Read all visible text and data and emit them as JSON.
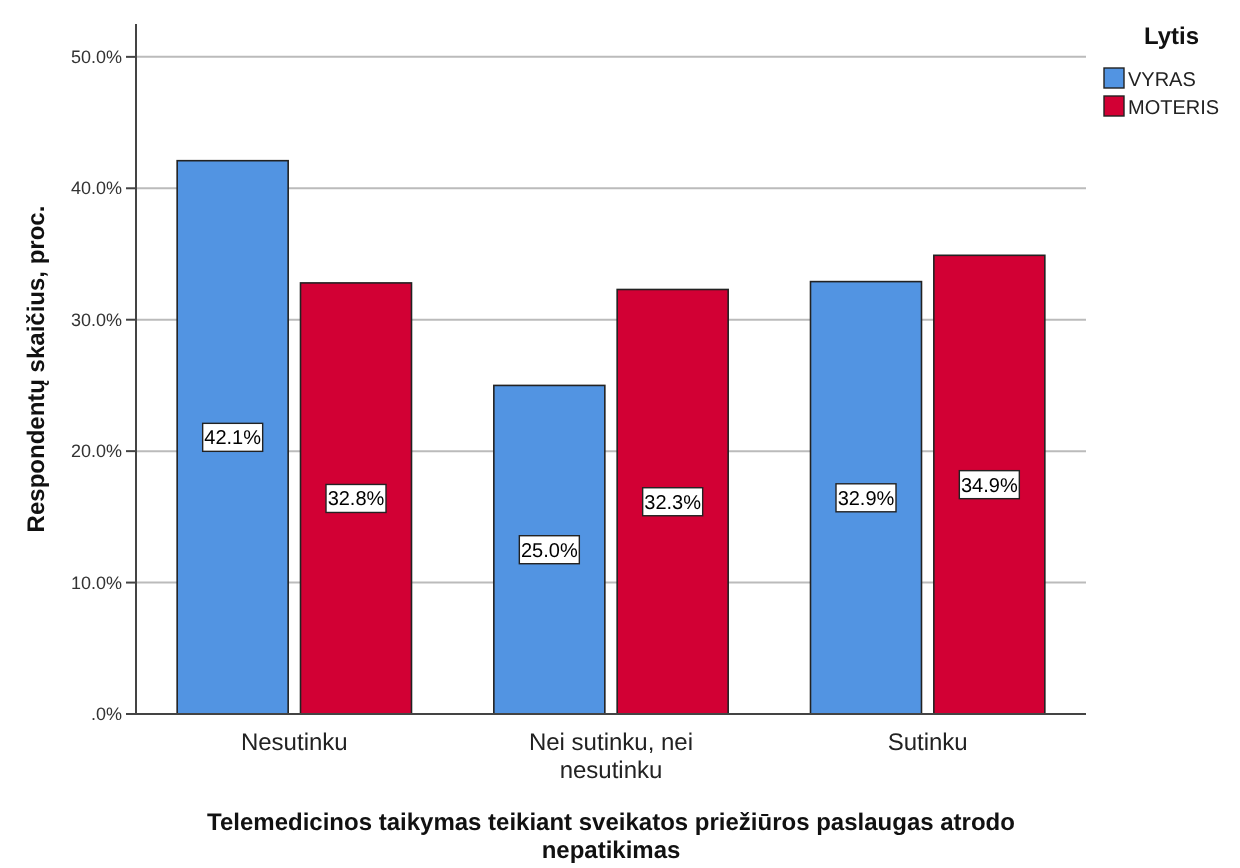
{
  "chart_data": {
    "type": "bar",
    "xlabel": "Telemedicinos taikymas teikiant sveikatos priežiūros paslaugas atrodo nepatikimas",
    "ylabel": "Respondentų skaičius, proc.",
    "legend_title": "Lytis",
    "legend": "top right",
    "grid": "y",
    "categories": [
      "Nesutinku",
      "Nei sutinku, nei nesutinku",
      "Sutinku"
    ],
    "series": [
      {
        "name": "VYRAS",
        "color": "#5294e2",
        "values": [
          42.1,
          25.0,
          32.9
        ],
        "value_labels": [
          "42.1%",
          "25.0%",
          "32.9%"
        ]
      },
      {
        "name": "MOTERIS",
        "color": "#d20034",
        "values": [
          32.8,
          32.3,
          34.9
        ],
        "value_labels": [
          "32.8%",
          "32.3%",
          "34.9%"
        ]
      }
    ],
    "ylim": [
      0,
      52.5
    ],
    "yticks": [
      {
        "value": 0,
        "label": ".0%"
      },
      {
        "value": 10,
        "label": "10.0%"
      },
      {
        "value": 20,
        "label": "20.0%"
      },
      {
        "value": 30,
        "label": "30.0%"
      },
      {
        "value": 40,
        "label": "40.0%"
      },
      {
        "value": 50,
        "label": "50.0%"
      }
    ]
  }
}
